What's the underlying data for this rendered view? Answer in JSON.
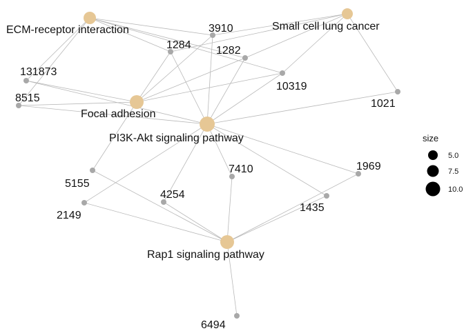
{
  "graph": {
    "colors": {
      "pathway_node": "#e6c795",
      "gene_node": "#a8a8a8",
      "edge": "#b8b8b8",
      "legend_dot": "#000000"
    },
    "pathways": [
      {
        "id": "ecm",
        "label": "ECM-receptor interaction"
      },
      {
        "id": "sclc",
        "label": "Small cell lung cancer"
      },
      {
        "id": "focal",
        "label": "Focal adhesion"
      },
      {
        "id": "pi3k",
        "label": "PI3K-Akt signaling pathway"
      },
      {
        "id": "rap1",
        "label": "Rap1 signaling pathway"
      }
    ],
    "genes": [
      {
        "id": "g3910",
        "label": "3910"
      },
      {
        "id": "g1284",
        "label": "1284"
      },
      {
        "id": "g1282",
        "label": "1282"
      },
      {
        "id": "g131873",
        "label": "131873"
      },
      {
        "id": "g10319",
        "label": "10319"
      },
      {
        "id": "g8515",
        "label": "8515"
      },
      {
        "id": "g1021",
        "label": "1021"
      },
      {
        "id": "g1969",
        "label": "1969"
      },
      {
        "id": "g7410",
        "label": "7410"
      },
      {
        "id": "g5155",
        "label": "5155"
      },
      {
        "id": "g4254",
        "label": "4254"
      },
      {
        "id": "g1435",
        "label": "1435"
      },
      {
        "id": "g2149",
        "label": "2149"
      },
      {
        "id": "g6494",
        "label": "6494"
      }
    ],
    "edges": [
      [
        "ecm",
        "g1284"
      ],
      [
        "ecm",
        "g1282"
      ],
      [
        "ecm",
        "g3910"
      ],
      [
        "ecm",
        "g10319"
      ],
      [
        "ecm",
        "g131873"
      ],
      [
        "ecm",
        "g8515"
      ],
      [
        "sclc",
        "g1284"
      ],
      [
        "sclc",
        "g1282"
      ],
      [
        "sclc",
        "g3910"
      ],
      [
        "sclc",
        "g10319"
      ],
      [
        "sclc",
        "g1021"
      ],
      [
        "focal",
        "g1284"
      ],
      [
        "focal",
        "g1282"
      ],
      [
        "focal",
        "g3910"
      ],
      [
        "focal",
        "g10319"
      ],
      [
        "focal",
        "g131873"
      ],
      [
        "focal",
        "g8515"
      ],
      [
        "focal",
        "g5155"
      ],
      [
        "pi3k",
        "g1284"
      ],
      [
        "pi3k",
        "g1282"
      ],
      [
        "pi3k",
        "g3910"
      ],
      [
        "pi3k",
        "g10319"
      ],
      [
        "pi3k",
        "g131873"
      ],
      [
        "pi3k",
        "g8515"
      ],
      [
        "pi3k",
        "g1021"
      ],
      [
        "pi3k",
        "g1969"
      ],
      [
        "pi3k",
        "g7410"
      ],
      [
        "pi3k",
        "g4254"
      ],
      [
        "pi3k",
        "g2149"
      ],
      [
        "pi3k",
        "g1435"
      ],
      [
        "rap1",
        "g7410"
      ],
      [
        "rap1",
        "g5155"
      ],
      [
        "rap1",
        "g4254"
      ],
      [
        "rap1",
        "g1969"
      ],
      [
        "rap1",
        "g1435"
      ],
      [
        "rap1",
        "g2149"
      ],
      [
        "rap1",
        "g6494"
      ]
    ]
  },
  "legend": {
    "title": "size",
    "items": [
      {
        "label": "5.0"
      },
      {
        "label": "7.5"
      },
      {
        "label": "10.0"
      }
    ]
  }
}
